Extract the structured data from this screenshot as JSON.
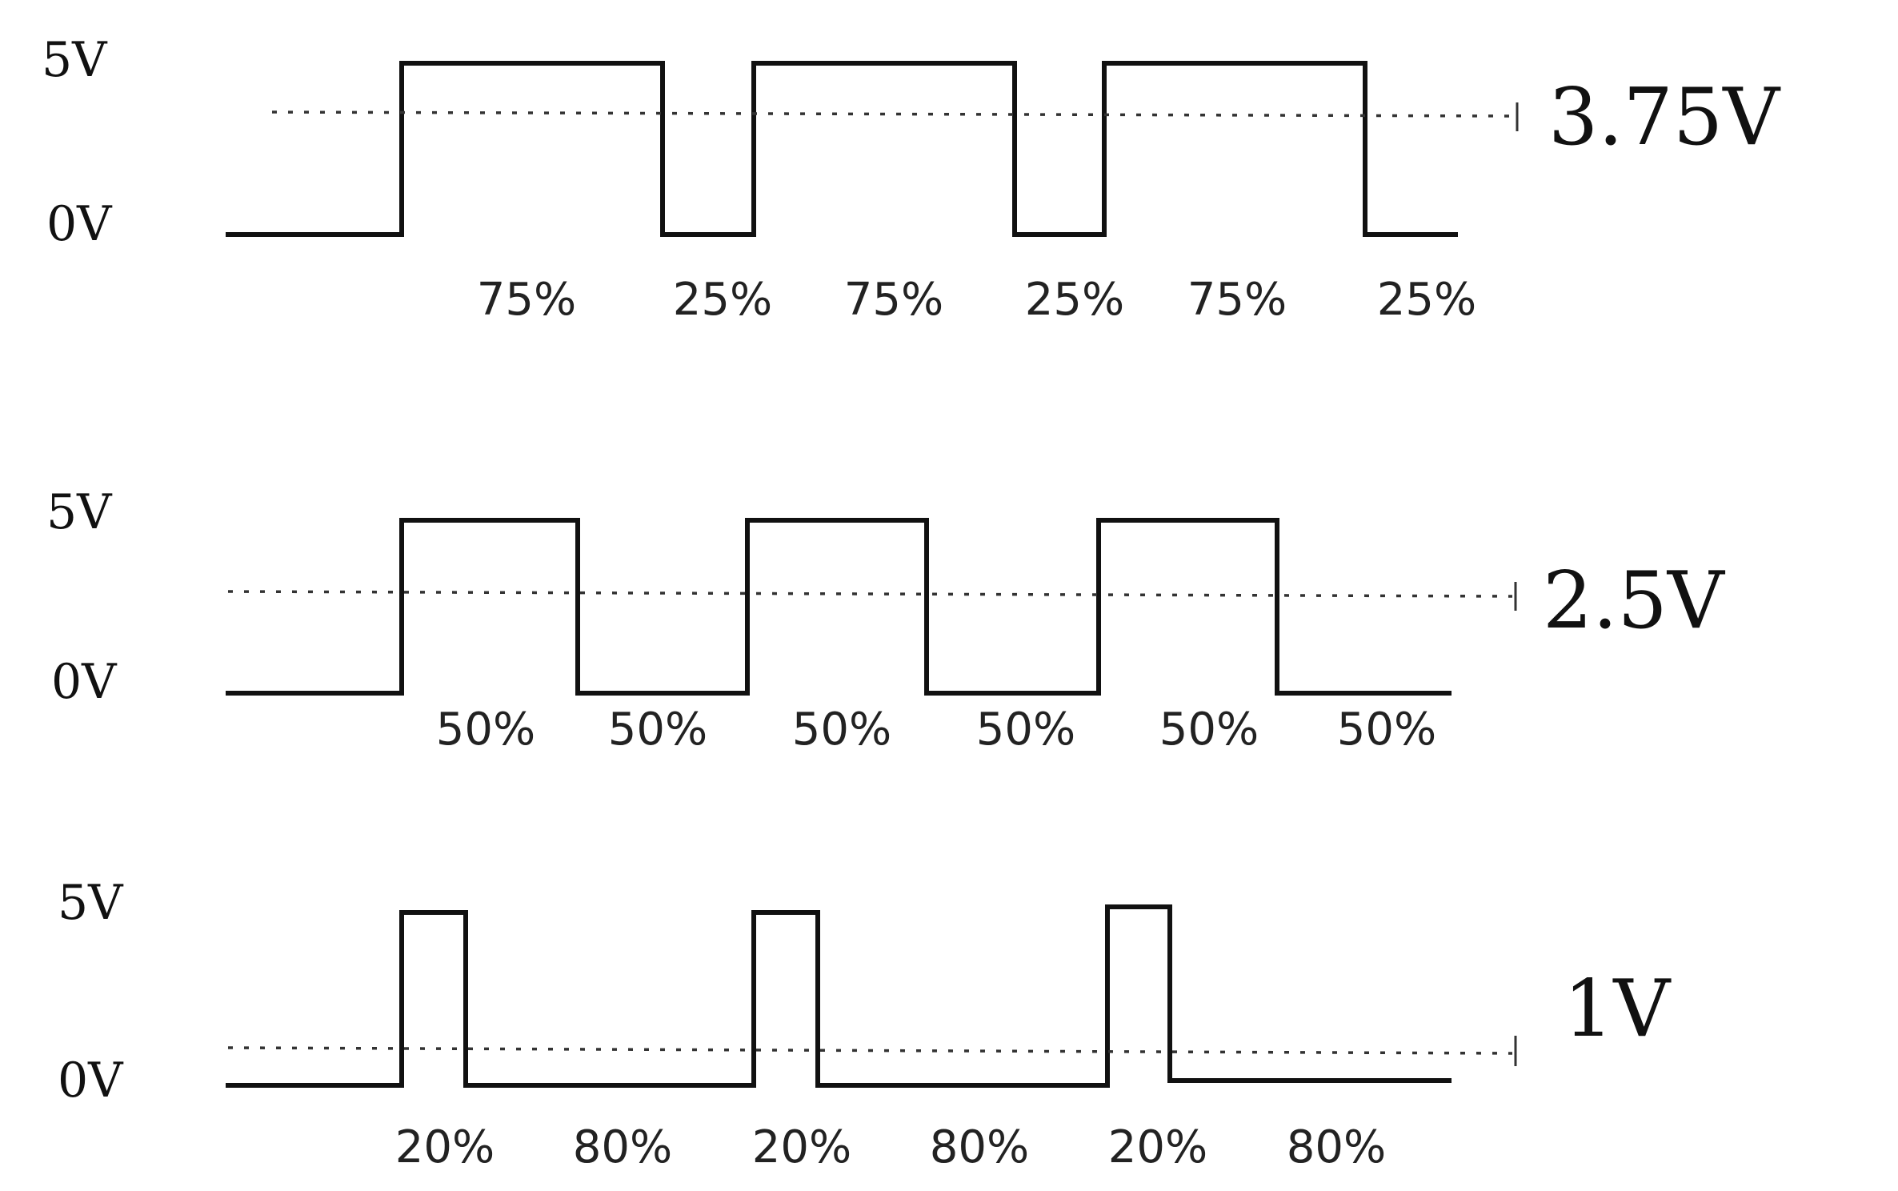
{
  "panels": [
    {
      "high_label": "5V",
      "low_label": "0V",
      "average_label": "3.75V",
      "average_volts": 3.75,
      "duty_cycle": 0.75,
      "duty_labels": [
        "75%",
        "25%",
        "75%",
        "25%",
        "75%",
        "25%"
      ]
    },
    {
      "high_label": "5V",
      "low_label": "0V",
      "average_label": "2.5V",
      "average_volts": 2.5,
      "duty_cycle": 0.5,
      "duty_labels": [
        "50%",
        "50%",
        "50%",
        "50%",
        "50%",
        "50%"
      ]
    },
    {
      "high_label": "5V",
      "low_label": "0V",
      "average_label": "1V",
      "average_volts": 1,
      "duty_cycle": 0.2,
      "duty_labels": [
        "20%",
        "80%",
        "20%",
        "80%",
        "20%",
        "80%"
      ]
    }
  ],
  "colors": {
    "waveform": "#111111",
    "average_line": "#333333",
    "background": "#ffffff"
  }
}
